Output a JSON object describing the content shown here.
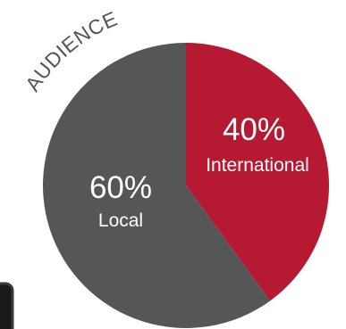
{
  "chart_data": {
    "type": "pie",
    "title": "AUDIENCE",
    "slices": [
      {
        "label": "International",
        "value": 40,
        "value_label": "40%",
        "color": "#b51a32"
      },
      {
        "label": "Local",
        "value": 60,
        "value_label": "60%",
        "color": "#555657"
      }
    ]
  }
}
